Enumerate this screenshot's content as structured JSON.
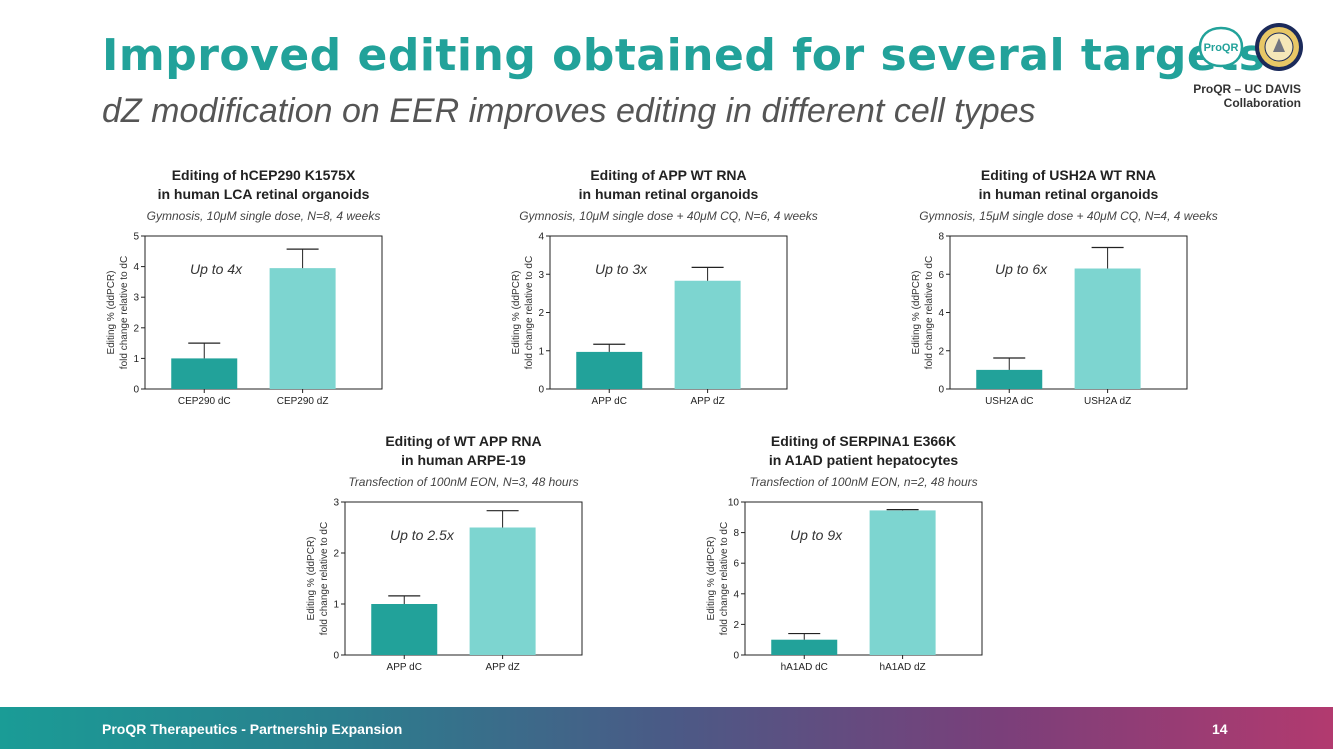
{
  "header": {
    "title": "Improved editing obtained for several targets",
    "subtitle": "dZ modification on EER improves editing in different cell types"
  },
  "logos": {
    "proqr_text": "ProQR",
    "collab_line1": "ProQR – UC DAVIS",
    "collab_line2": "Collaboration"
  },
  "footer": {
    "text": "ProQR Therapeutics - Partnership Expansion",
    "page": "14"
  },
  "colors": {
    "teal_dark": "#22a29a",
    "teal_light": "#7dd5d0",
    "title": "#22a29a"
  },
  "chart_data": [
    {
      "type": "bar",
      "title_line1": "Editing of hCEP290 K1575X",
      "title_line2": "in human LCA retinal organoids",
      "subtitle": "Gymnosis, 10μM single dose, N=8, 4 weeks",
      "ylabel_line1": "Editing % (ddPCR)",
      "ylabel_line2": "fold change relative to dC",
      "categories": [
        "CEP290 dC",
        "CEP290 dZ"
      ],
      "values": [
        1.0,
        3.95
      ],
      "errors": [
        0.5,
        0.62
      ],
      "ylim": [
        0,
        5
      ],
      "yticks": [
        0,
        1,
        2,
        3,
        4,
        5
      ],
      "annotation": "Up to 4x"
    },
    {
      "type": "bar",
      "title_line1": "Editing of APP WT RNA",
      "title_line2": "in human retinal organoids",
      "subtitle": "Gymnosis, 10μM single dose + 40μM CQ, N=6, 4 weeks",
      "ylabel_line1": "Editing % (ddPCR)",
      "ylabel_line2": "fold change relative to dC",
      "categories": [
        "APP dC",
        "APP dZ"
      ],
      "values": [
        0.97,
        2.83
      ],
      "errors": [
        0.2,
        0.35
      ],
      "ylim": [
        0,
        4
      ],
      "yticks": [
        0,
        1,
        2,
        3,
        4
      ],
      "annotation": "Up to 3x"
    },
    {
      "type": "bar",
      "title_line1": "Editing of USH2A WT RNA",
      "title_line2": "in human retinal organoids",
      "subtitle": "Gymnosis, 15μM single dose + 40μM CQ, N=4, 4 weeks",
      "ylabel_line1": "Editing % (ddPCR)",
      "ylabel_line2": "fold change relative to dC",
      "categories": [
        "USH2A dC",
        "USH2A dZ"
      ],
      "values": [
        1.0,
        6.3
      ],
      "errors": [
        0.62,
        1.1
      ],
      "ylim": [
        0,
        8
      ],
      "yticks": [
        0,
        2,
        4,
        6,
        8
      ],
      "annotation": "Up to 6x"
    },
    {
      "type": "bar",
      "title_line1": "Editing of WT APP RNA",
      "title_line2": "in human ARPE-19",
      "subtitle": "Transfection of 100nM EON, N=3, 48 hours",
      "ylabel_line1": "Editing % (ddPCR)",
      "ylabel_line2": "fold change relative to dC",
      "categories": [
        "APP dC",
        "APP dZ"
      ],
      "values": [
        1.0,
        2.5
      ],
      "errors": [
        0.16,
        0.33
      ],
      "ylim": [
        0,
        3
      ],
      "yticks": [
        0,
        1,
        2,
        3
      ],
      "annotation": "Up to 2.5x"
    },
    {
      "type": "bar",
      "title_line1": "Editing of SERPINA1 E366K",
      "title_line2": "in A1AD patient hepatocytes",
      "subtitle": "Transfection of 100nM EON, n=2, 48 hours",
      "ylabel_line1": "Editing % (ddPCR)",
      "ylabel_line2": "fold change relative to dC",
      "categories": [
        "hA1AD dC",
        "hA1AD dZ"
      ],
      "values": [
        1.0,
        9.45
      ],
      "errors": [
        0.4,
        0.05
      ],
      "ylim": [
        0,
        10
      ],
      "yticks": [
        0,
        2,
        4,
        6,
        8,
        10
      ],
      "annotation": "Up to 9x"
    }
  ]
}
